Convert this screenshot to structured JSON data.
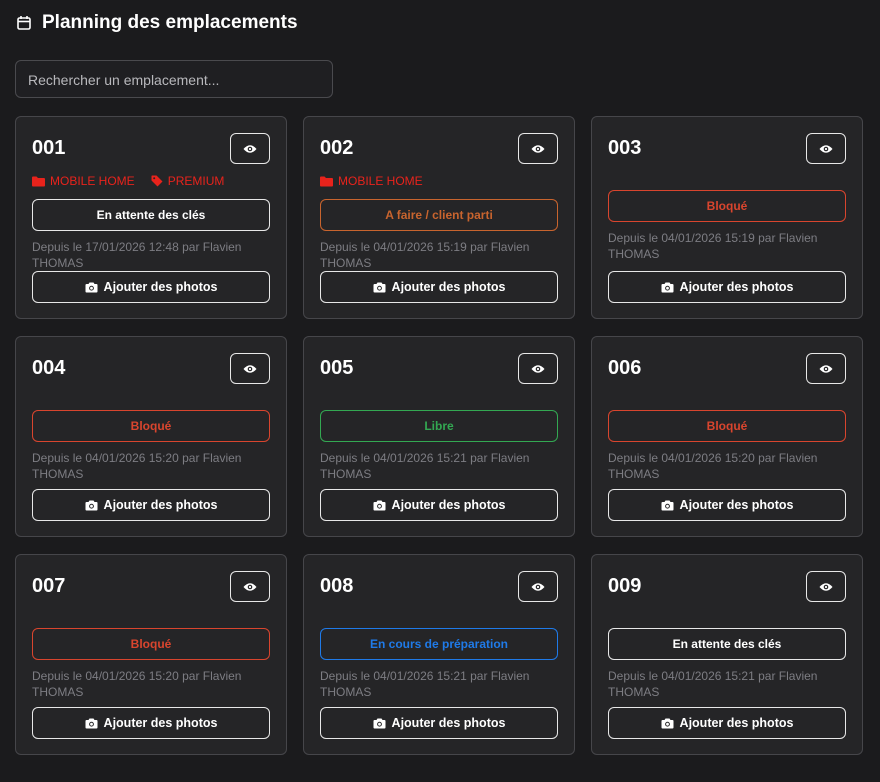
{
  "header": {
    "title": "Planning des emplacements"
  },
  "search": {
    "placeholder": "Rechercher un emplacement..."
  },
  "cards": [
    {
      "number": "001",
      "tags": [
        "MOBILE HOME",
        "PREMIUM"
      ],
      "status": "En attente des clés",
      "status_color": "#e8e8e8",
      "since": "Depuis le 17/01/2026 12:48 par Flavien THOMAS",
      "action": "Ajouter des photos"
    },
    {
      "number": "002",
      "tags": [
        "MOBILE HOME"
      ],
      "status": "A faire / client parti",
      "status_color": "#c8642e",
      "since": "Depuis le 04/01/2026 15:19 par Flavien THOMAS",
      "action": "Ajouter des photos"
    },
    {
      "number": "003",
      "tags": [],
      "status": "Bloqué",
      "status_color": "#d9452e",
      "since": "Depuis le 04/01/2026 15:19 par Flavien THOMAS",
      "action": "Ajouter des photos"
    },
    {
      "number": "004",
      "tags": [],
      "status": "Bloqué",
      "status_color": "#d9452e",
      "since": "Depuis le 04/01/2026 15:20 par Flavien THOMAS",
      "action": "Ajouter des photos"
    },
    {
      "number": "005",
      "tags": [],
      "status": "Libre",
      "status_color": "#33a852",
      "since": "Depuis le 04/01/2026 15:21 par Flavien THOMAS",
      "action": "Ajouter des photos"
    },
    {
      "number": "006",
      "tags": [],
      "status": "Bloqué",
      "status_color": "#d9452e",
      "since": "Depuis le 04/01/2026 15:20 par Flavien THOMAS",
      "action": "Ajouter des photos"
    },
    {
      "number": "007",
      "tags": [],
      "status": "Bloqué",
      "status_color": "#d9452e",
      "since": "Depuis le 04/01/2026 15:20 par Flavien THOMAS",
      "action": "Ajouter des photos"
    },
    {
      "number": "008",
      "tags": [],
      "status": "En cours de préparation",
      "status_color": "#1f7ae8",
      "since": "Depuis le 04/01/2026 15:21 par Flavien THOMAS",
      "action": "Ajouter des photos"
    },
    {
      "number": "009",
      "tags": [],
      "status": "En attente des clés",
      "status_color": "#e8e8e8",
      "since": "Depuis le 04/01/2026 15:21 par Flavien THOMAS",
      "action": "Ajouter des photos"
    }
  ]
}
